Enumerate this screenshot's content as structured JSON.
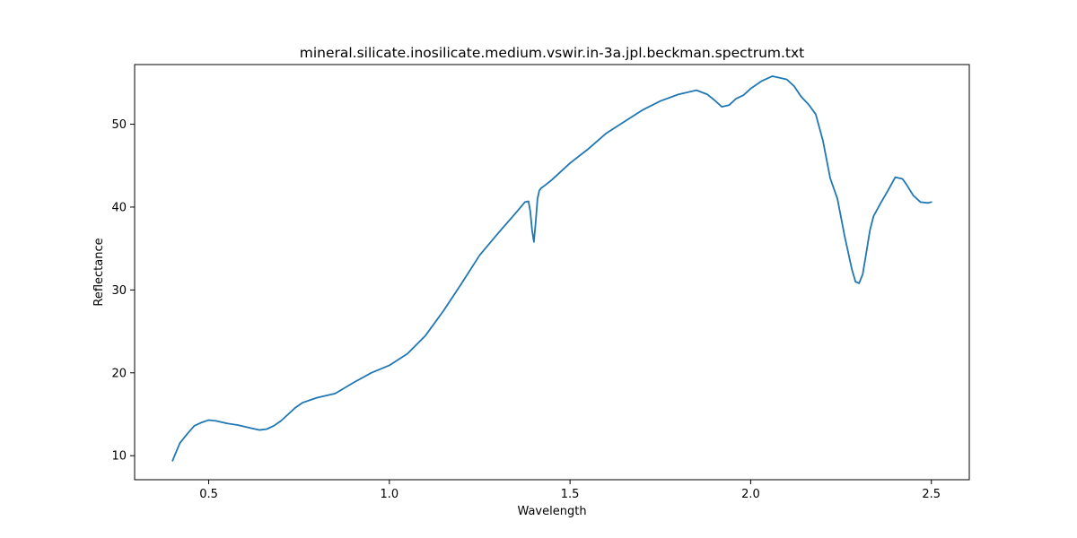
{
  "chart_data": {
    "type": "line",
    "title": "mineral.silicate.inosilicate.medium.vswir.in-3a.jpl.beckman.spectrum.txt",
    "xlabel": "Wavelength",
    "ylabel": "Reflectance",
    "xlim": [
      0.295,
      2.605
    ],
    "ylim": [
      7.1,
      57.2
    ],
    "xticks": [
      0.5,
      1.0,
      1.5,
      2.0,
      2.5
    ],
    "xtick_labels": [
      "0.5",
      "1.0",
      "1.5",
      "2.0",
      "2.5"
    ],
    "yticks": [
      10,
      20,
      30,
      40,
      50
    ],
    "ytick_labels": [
      "10",
      "20",
      "30",
      "40",
      "50"
    ],
    "grid": false,
    "series": [
      {
        "color": "#1f77b4",
        "x": [
          0.4,
          0.42,
          0.44,
          0.46,
          0.48,
          0.5,
          0.52,
          0.55,
          0.58,
          0.6,
          0.62,
          0.64,
          0.66,
          0.68,
          0.7,
          0.72,
          0.74,
          0.76,
          0.78,
          0.8,
          0.85,
          0.9,
          0.95,
          1.0,
          1.05,
          1.1,
          1.15,
          1.2,
          1.25,
          1.3,
          1.35,
          1.375,
          1.385,
          1.39,
          1.395,
          1.4,
          1.405,
          1.41,
          1.415,
          1.42,
          1.43,
          1.45,
          1.5,
          1.55,
          1.6,
          1.65,
          1.7,
          1.75,
          1.8,
          1.85,
          1.88,
          1.9,
          1.92,
          1.94,
          1.96,
          1.98,
          2.0,
          2.03,
          2.06,
          2.08,
          2.1,
          2.12,
          2.14,
          2.16,
          2.18,
          2.2,
          2.22,
          2.24,
          2.26,
          2.28,
          2.29,
          2.3,
          2.31,
          2.32,
          2.33,
          2.34,
          2.36,
          2.38,
          2.4,
          2.42,
          2.43,
          2.45,
          2.47,
          2.49,
          2.5
        ],
        "y": [
          9.4,
          11.5,
          12.6,
          13.6,
          14.0,
          14.3,
          14.2,
          13.9,
          13.7,
          13.5,
          13.3,
          13.1,
          13.2,
          13.6,
          14.2,
          15.0,
          15.8,
          16.4,
          16.7,
          17.0,
          17.5,
          18.8,
          20.0,
          20.9,
          22.3,
          24.5,
          27.5,
          30.8,
          34.2,
          36.8,
          39.3,
          40.6,
          40.7,
          39.5,
          37.2,
          35.8,
          38.2,
          41.0,
          42.0,
          42.3,
          42.6,
          43.3,
          45.3,
          47.0,
          48.9,
          50.3,
          51.7,
          52.8,
          53.6,
          54.1,
          53.6,
          52.9,
          52.1,
          52.3,
          53.1,
          53.5,
          54.3,
          55.2,
          55.8,
          55.6,
          55.4,
          54.6,
          53.3,
          52.4,
          51.2,
          48.0,
          43.5,
          41.0,
          36.5,
          32.5,
          31.0,
          30.8,
          31.9,
          34.5,
          37.2,
          38.9,
          40.5,
          42.0,
          43.6,
          43.4,
          42.8,
          41.4,
          40.6,
          40.5,
          40.6
        ]
      }
    ]
  }
}
